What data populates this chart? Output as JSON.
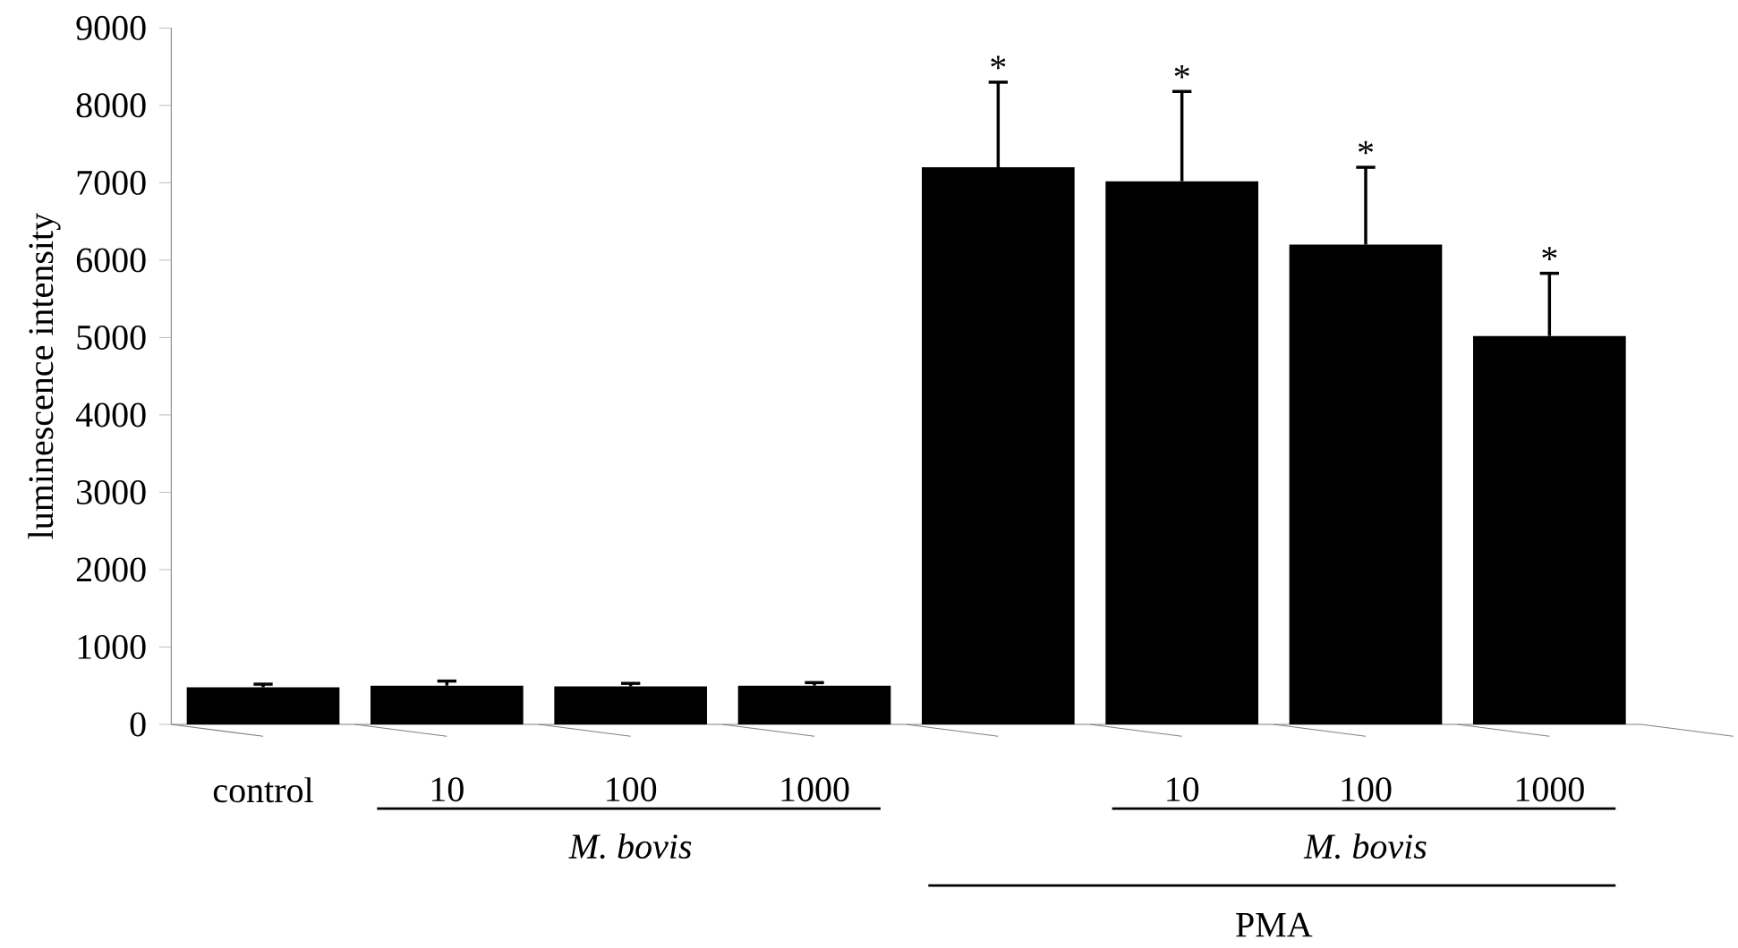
{
  "chart_data": {
    "type": "bar",
    "ylabel": "luminescence intensity",
    "categories": [
      "control",
      "10",
      "100",
      "1000",
      null,
      "10",
      "100",
      "1000"
    ],
    "values": [
      480,
      500,
      490,
      500,
      7200,
      7020,
      6200,
      5020
    ],
    "errors": [
      40,
      60,
      40,
      40,
      1100,
      1160,
      1000,
      810
    ],
    "value_labels": [
      null,
      null,
      null,
      null,
      "*",
      "*",
      "*",
      "*"
    ],
    "color": "#000000",
    "ylim": [
      0,
      9000
    ],
    "yticks": [
      0,
      1000,
      2000,
      3000,
      4000,
      5000,
      6000,
      7000,
      8000,
      9000
    ],
    "annotations": [
      "M. bovis",
      "M. bovis",
      "PMA"
    ]
  }
}
